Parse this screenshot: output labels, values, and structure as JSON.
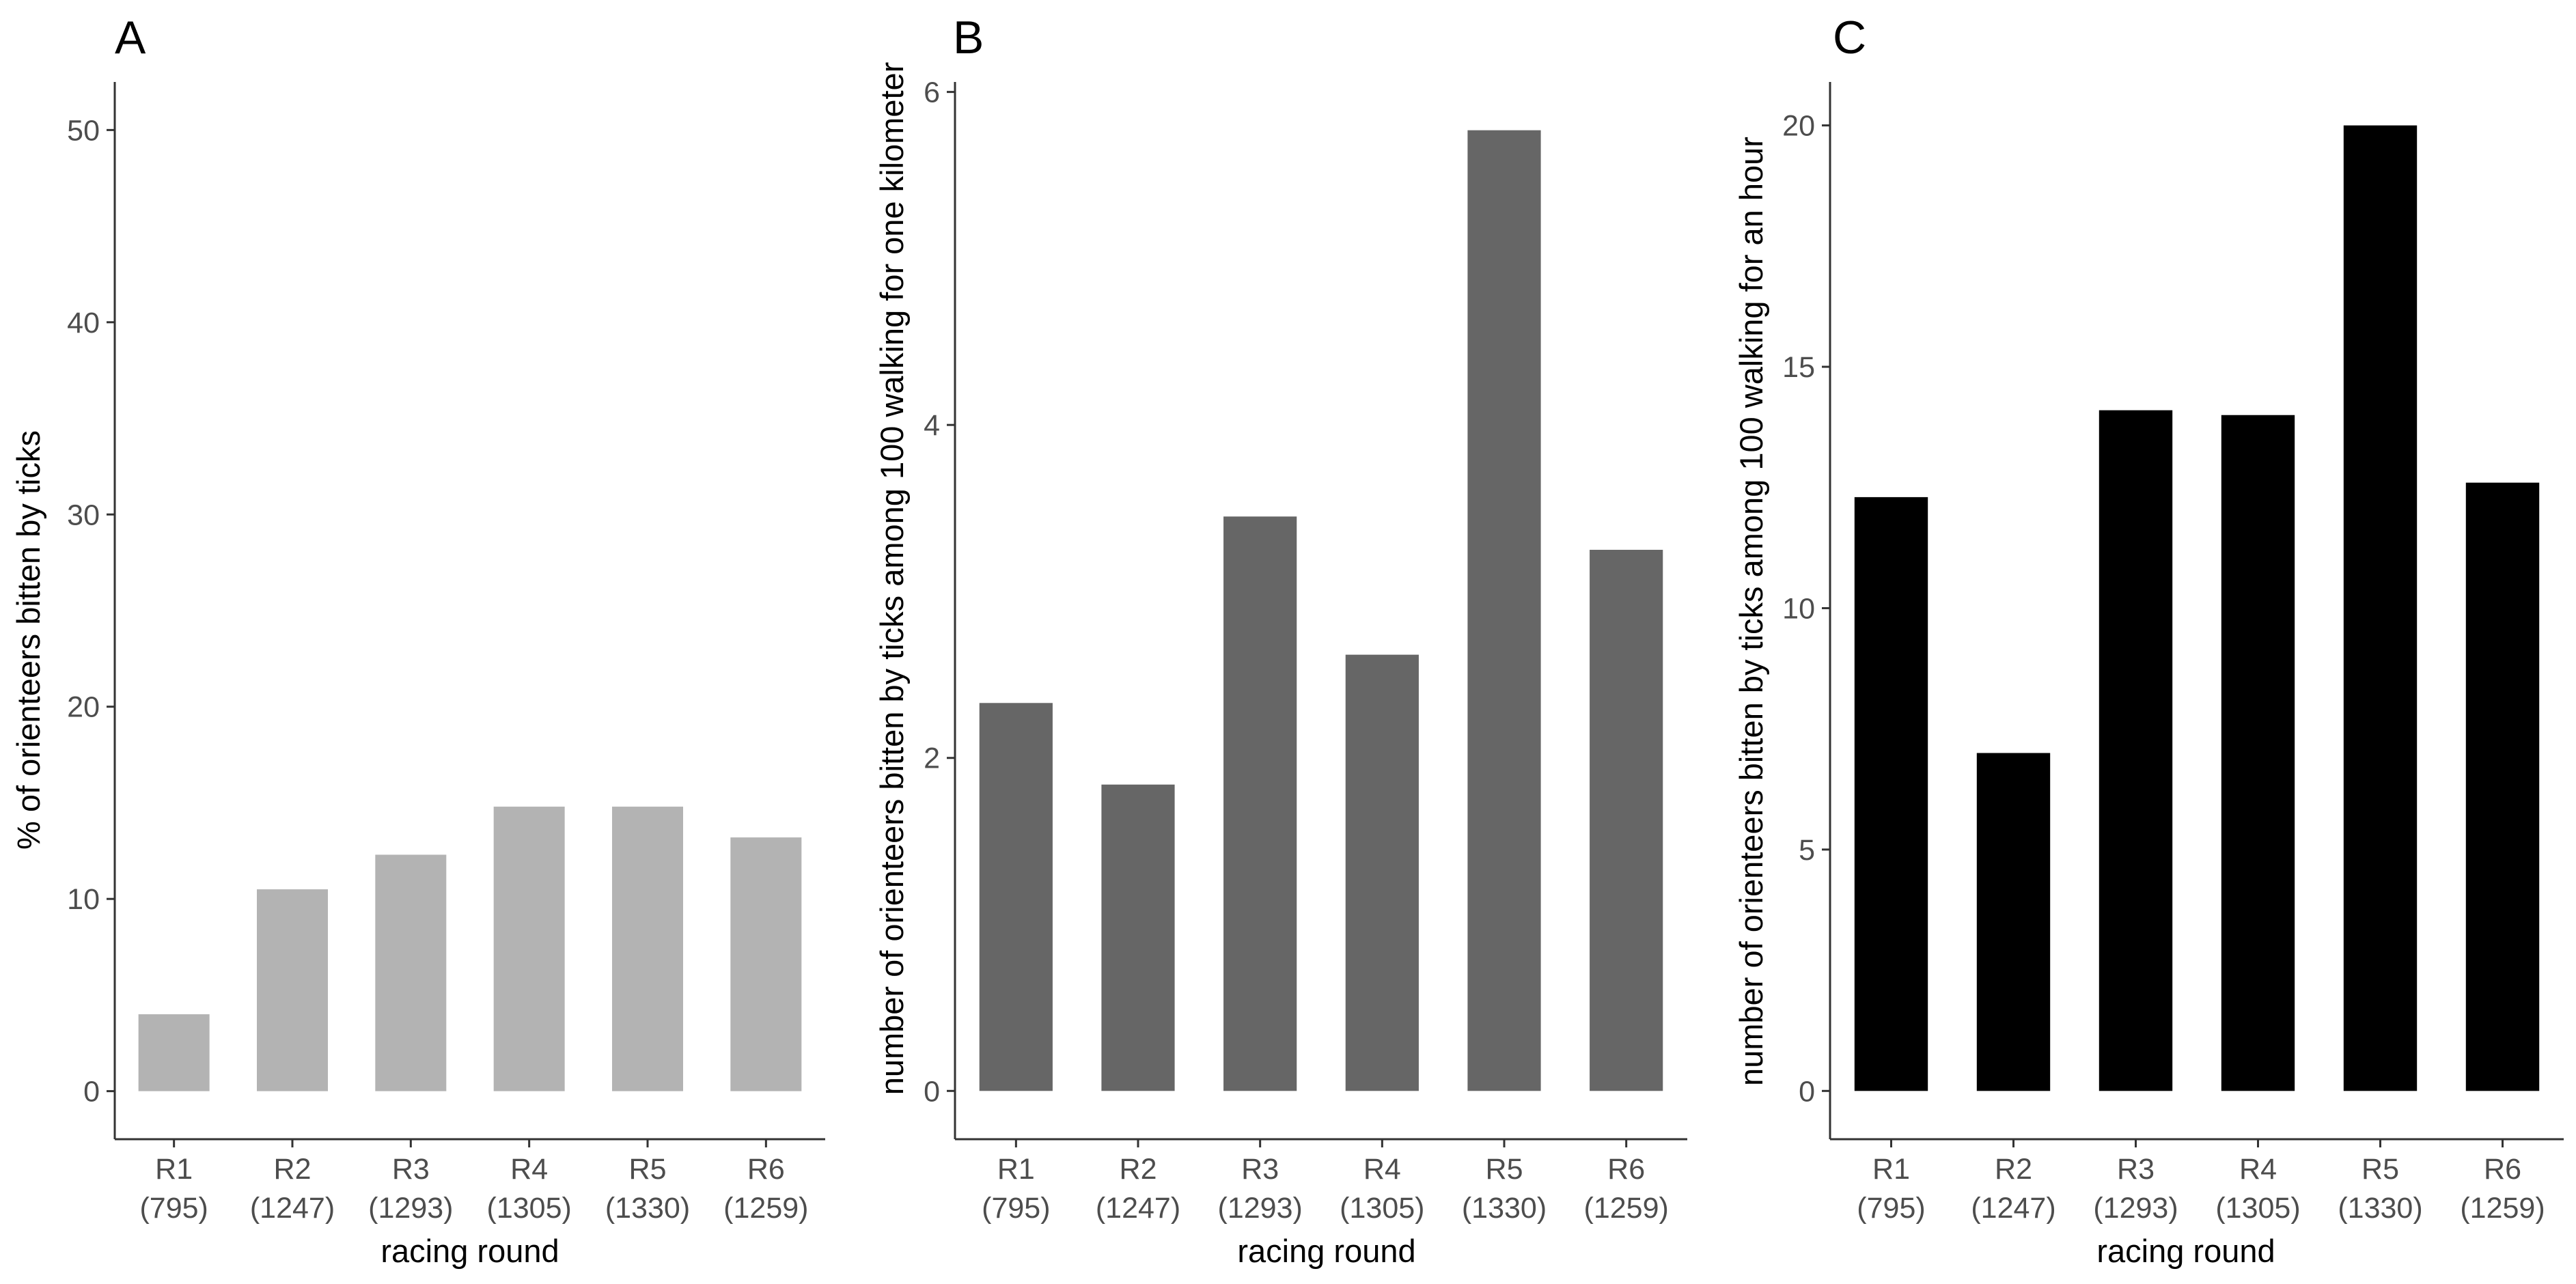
{
  "chart_data": [
    {
      "type": "bar",
      "panel_label": "A",
      "title": "",
      "xlabel": "racing round",
      "ylabel": "% of orienteers bitten by ticks",
      "categories": [
        "R1",
        "R2",
        "R3",
        "R4",
        "R5",
        "R6"
      ],
      "category_sublabels": [
        "(795)",
        "(1247)",
        "(1293)",
        "(1305)",
        "(1330)",
        "(1259)"
      ],
      "values": [
        4.0,
        10.5,
        12.3,
        14.8,
        14.8,
        13.2
      ],
      "ylim": [
        -2.5,
        52.5
      ],
      "yticks": [
        "0",
        "10",
        "20",
        "30",
        "40",
        "50"
      ],
      "bar_color": "#b3b3b3"
    },
    {
      "type": "bar",
      "panel_label": "B",
      "title": "",
      "xlabel": "racing round",
      "ylabel": "number of orienteers bitten by ticks among 100 walking for one kilometer",
      "categories": [
        "R1",
        "R2",
        "R3",
        "R4",
        "R5",
        "R6"
      ],
      "category_sublabels": [
        "(795)",
        "(1247)",
        "(1293)",
        "(1305)",
        "(1330)",
        "(1259)"
      ],
      "values": [
        2.33,
        1.84,
        3.45,
        2.62,
        5.77,
        3.25
      ],
      "ylim": [
        -0.29,
        6.06
      ],
      "yticks": [
        "0",
        "2",
        "4",
        "6"
      ],
      "bar_color": "#666666"
    },
    {
      "type": "bar",
      "panel_label": "C",
      "title": "",
      "xlabel": "racing round",
      "ylabel": "number of orienteers bitten by ticks among 100 walking for an hour",
      "categories": [
        "R1",
        "R2",
        "R3",
        "R4",
        "R5",
        "R6"
      ],
      "category_sublabels": [
        "(795)",
        "(1247)",
        "(1293)",
        "(1305)",
        "(1330)",
        "(1259)"
      ],
      "values": [
        12.3,
        7.0,
        14.1,
        14.0,
        20.0,
        12.6
      ],
      "ylim": [
        -1.0,
        20.9
      ],
      "yticks": [
        "0",
        "5",
        "10",
        "15",
        "20"
      ],
      "bar_color": "#000000"
    }
  ]
}
